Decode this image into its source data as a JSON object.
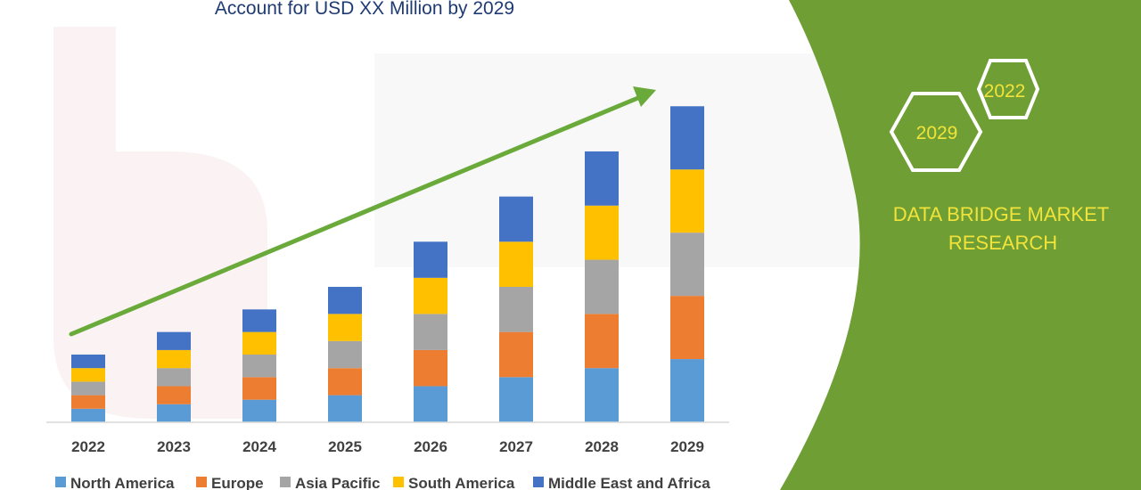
{
  "page_title": "Account for USD XX Million by 2029",
  "brand": {
    "line1": "DATA BRIDGE MARKET",
    "line2": "RESEARCH",
    "hex_years": [
      "2022",
      "2029"
    ],
    "panel_color": "#6e9e34",
    "text_color": "#f2e33a"
  },
  "chart_data": {
    "type": "bar",
    "stacked": true,
    "categories": [
      "2022",
      "2023",
      "2024",
      "2025",
      "2026",
      "2027",
      "2028",
      "2029"
    ],
    "series": [
      {
        "name": "North America",
        "color": "#5b9bd5",
        "values": [
          3,
          4,
          5,
          6,
          8,
          10,
          12,
          14
        ]
      },
      {
        "name": "Europe",
        "color": "#ed7d31",
        "values": [
          3,
          4,
          5,
          6,
          8,
          10,
          12,
          14
        ]
      },
      {
        "name": "Asia Pacific",
        "color": "#a5a5a5",
        "values": [
          3,
          4,
          5,
          6,
          8,
          10,
          12,
          14
        ]
      },
      {
        "name": "South America",
        "color": "#ffc000",
        "values": [
          3,
          4,
          5,
          6,
          8,
          10,
          12,
          14
        ]
      },
      {
        "name": "Middle East and Africa",
        "color": "#4472c4",
        "values": [
          3,
          4,
          5,
          6,
          8,
          10,
          12,
          14
        ]
      }
    ],
    "ylim": [
      0,
      74
    ],
    "xlabel": "",
    "ylabel": "",
    "legend": "bottom",
    "grid": false,
    "annotation": "trend-arrow"
  }
}
